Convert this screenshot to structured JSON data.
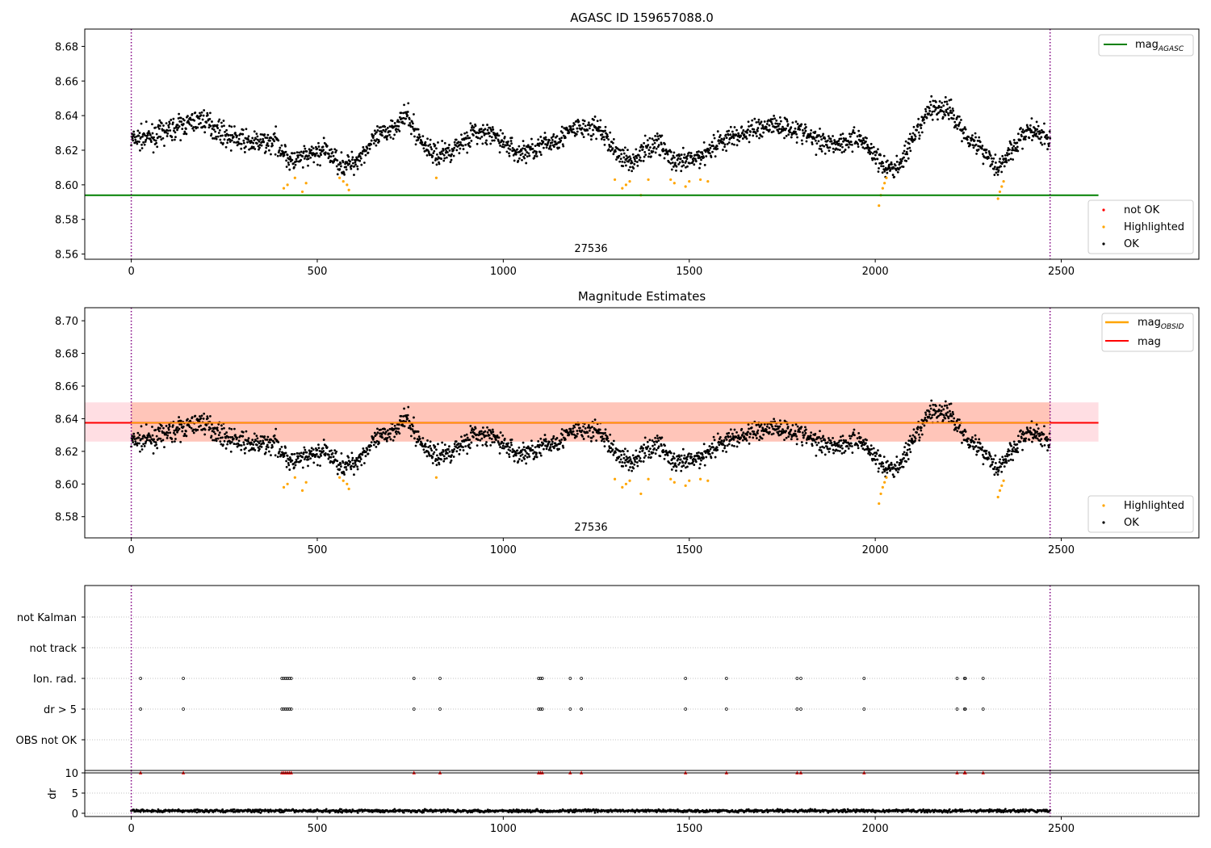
{
  "chart_data": [
    {
      "type": "scatter",
      "title": "AGASC ID 159657088.0",
      "xlim": [
        -125,
        2870
      ],
      "ylim": [
        8.557,
        8.69
      ],
      "xticks": [
        0,
        500,
        1000,
        1500,
        2000,
        2500
      ],
      "yticks": [
        8.56,
        8.58,
        8.6,
        8.62,
        8.64,
        8.66,
        8.68
      ],
      "grid": false,
      "legend_upper": {
        "placement": "top-right",
        "entries": [
          {
            "label": "mag",
            "sub": "AGASC",
            "color": "#008000"
          }
        ]
      },
      "legend_lower": {
        "placement": "bottom-right",
        "entries": [
          {
            "label": "not OK",
            "color": "#ff0000"
          },
          {
            "label": "Highlighted",
            "color": "#ffa500"
          },
          {
            "label": "OK",
            "color": "#000000"
          }
        ]
      },
      "hlines": [
        {
          "name": "mag_AGASC",
          "y": 8.594,
          "x_range": [
            -125,
            2600
          ],
          "color": "#008000"
        }
      ],
      "vlines": [
        0,
        2470
      ],
      "annotation": {
        "text": "27536",
        "x": 1235
      },
      "noise_seed": 7,
      "series": [
        {
          "name": "OK",
          "color": "#000000",
          "x_range": [
            0,
            2470
          ],
          "n": 2200
        },
        {
          "name": "Highlighted",
          "color": "#ffa500",
          "x": [
            410,
            420,
            440,
            460,
            470,
            560,
            570,
            580,
            585,
            820,
            1300,
            1320,
            1330,
            1340,
            1370,
            1390,
            1450,
            1460,
            1490,
            1500,
            1530,
            1550,
            2010,
            2015,
            2020,
            2025,
            2030,
            2330,
            2335,
            2340,
            2345
          ],
          "y": [
            8.598,
            8.6,
            8.604,
            8.596,
            8.601,
            8.604,
            8.602,
            8.6,
            8.597,
            8.604,
            8.603,
            8.598,
            8.6,
            8.602,
            8.594,
            8.603,
            8.603,
            8.601,
            8.599,
            8.602,
            8.603,
            8.602,
            8.588,
            8.594,
            8.598,
            8.601,
            8.604,
            8.592,
            8.596,
            8.599,
            8.602
          ]
        }
      ]
    },
    {
      "type": "scatter",
      "title": "Magnitude Estimates",
      "xlim": [
        -125,
        2870
      ],
      "ylim": [
        8.567,
        8.708
      ],
      "xticks": [
        0,
        500,
        1000,
        1500,
        2000,
        2500
      ],
      "yticks": [
        8.58,
        8.6,
        8.62,
        8.64,
        8.66,
        8.68,
        8.7
      ],
      "grid": false,
      "legend_upper": {
        "placement": "top-right",
        "entries": [
          {
            "label": "mag",
            "sub": "OBSID",
            "color": "#ffa500"
          },
          {
            "label": "mag",
            "sub": "",
            "color": "#ff0000"
          }
        ]
      },
      "legend_lower": {
        "placement": "bottom-right",
        "entries": [
          {
            "label": "Highlighted",
            "color": "#ffa500"
          },
          {
            "label": "OK",
            "color": "#000000"
          }
        ]
      },
      "hlines": [
        {
          "name": "mag",
          "y": 8.6375,
          "x_range": [
            -125,
            2600
          ],
          "color": "#ff0000"
        },
        {
          "name": "mag_OBSID",
          "y": 8.6375,
          "x_range": [
            0,
            2470
          ],
          "color": "#ffa500"
        }
      ],
      "bands": [
        {
          "y0": 8.626,
          "y1": 8.65,
          "x_range": [
            -125,
            2600
          ],
          "color": "#ffb6c1",
          "opacity": 0.45
        },
        {
          "y0": 8.626,
          "y1": 8.65,
          "x_range": [
            0,
            2470
          ],
          "color": "#ffa07a",
          "opacity": 0.4
        }
      ],
      "vlines": [
        0,
        2470
      ],
      "annotation": {
        "text": "27536",
        "x": 1235
      },
      "series_same_as_panel": 0
    },
    {
      "type": "scatter",
      "title": "",
      "xlim": [
        -125,
        2870
      ],
      "xticks": [
        0,
        500,
        1000,
        1500,
        2000,
        2500
      ],
      "categories": [
        "not Kalman",
        "not track",
        "Ion. rad.",
        "dr > 5",
        "OBS not OK"
      ],
      "grid": true,
      "vlines": [
        0,
        2470
      ],
      "flag_x": [
        25,
        140,
        405,
        410,
        415,
        420,
        425,
        430,
        760,
        830,
        1095,
        1100,
        1105,
        1180,
        1210,
        1490,
        1600,
        1790,
        1800,
        1970,
        2220,
        2240,
        2242,
        2290
      ],
      "flag_rows": [
        "Ion. rad.",
        "dr > 5"
      ]
    },
    {
      "type": "line",
      "ylabel": "dr",
      "xlim": [
        -125,
        2870
      ],
      "ylim": [
        -0.8,
        10.6
      ],
      "xticks": [
        0,
        500,
        1000,
        1500,
        2000,
        2500
      ],
      "xticklabels": [
        "0",
        "500",
        "1000",
        "1500",
        "2000",
        "2500"
      ],
      "yticks": [
        0,
        5,
        10
      ],
      "grid": true,
      "hline": 10,
      "vlines": [
        0,
        2470
      ],
      "marker_y": 10,
      "marker_color": "#ff0000",
      "series": [
        {
          "name": "dr",
          "color": "#000000",
          "x_range": [
            0,
            2470
          ],
          "typical": 0.6
        }
      ]
    }
  ]
}
